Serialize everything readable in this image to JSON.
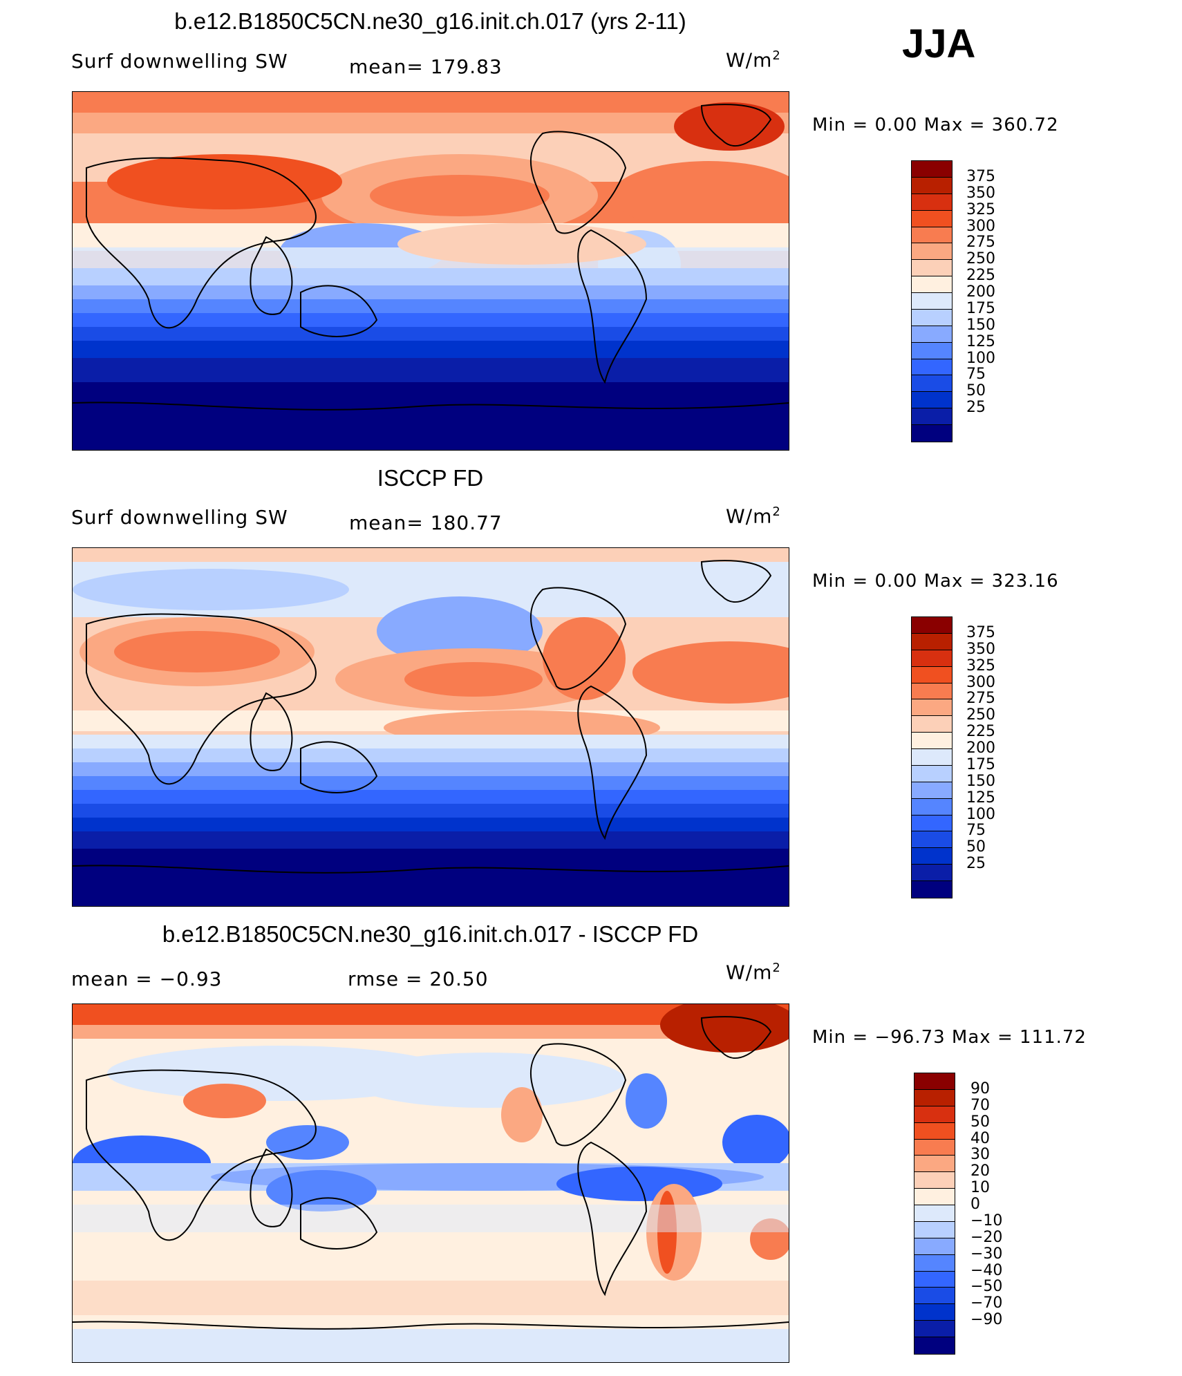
{
  "season": "JJA",
  "colors": {
    "abs": [
      "#00007f",
      "#0a1ea8",
      "#0033cc",
      "#1a4ce6",
      "#3366ff",
      "#5585ff",
      "#88aaff",
      "#b8d0ff",
      "#dde9fb",
      "#fff0e0",
      "#fcd0b8",
      "#fba882",
      "#f87c50",
      "#f05020",
      "#d83010",
      "#b82000",
      "#8a0000"
    ],
    "diff": [
      "#00007f",
      "#0a1ea8",
      "#0033cc",
      "#1a4ce6",
      "#3366ff",
      "#5585ff",
      "#88aaff",
      "#b8d0ff",
      "#dde9fb",
      "#fff0e0",
      "#fcd0b8",
      "#fba882",
      "#f87c50",
      "#f05020",
      "#d83010",
      "#b82000",
      "#8a0000"
    ]
  },
  "chart_data": [
    {
      "type": "contour-map",
      "title": "b.e12.B1850C5CN.ne30_g16.init.ch.017 (yrs 2-11)",
      "left_label": "Surf downwelling SW",
      "mean_label": "mean= 179.83",
      "units": "W/m",
      "units_sup": "2",
      "minmax": "Min =     0.00 Max  =  360.72",
      "min": 0.0,
      "max": 360.72,
      "levels": [
        "375",
        "350",
        "325",
        "300",
        "275",
        "250",
        "225",
        "200",
        "175",
        "150",
        "125",
        "100",
        "75",
        "50",
        "25"
      ]
    },
    {
      "type": "contour-map",
      "title": "ISCCP FD",
      "left_label": "Surf downwelling SW",
      "mean_label": "mean= 180.77",
      "units": "W/m",
      "units_sup": "2",
      "minmax": "Min =     0.00 Max  =  323.16",
      "min": 0.0,
      "max": 323.16,
      "levels": [
        "375",
        "350",
        "325",
        "300",
        "275",
        "250",
        "225",
        "200",
        "175",
        "150",
        "125",
        "100",
        "75",
        "50",
        "25"
      ]
    },
    {
      "type": "contour-map",
      "title": "b.e12.B1850C5CN.ne30_g16.init.ch.017 - ISCCP FD",
      "left_label": "mean =    −0.93",
      "mean_label": "rmse =    20.50",
      "units": "W/m",
      "units_sup": "2",
      "minmax": "Min  = −96.73 Max  =  111.72",
      "min": -96.73,
      "max": 111.72,
      "levels": [
        "90",
        "70",
        "50",
        "40",
        "30",
        "20",
        "10",
        "0",
        "−10",
        "−20",
        "−30",
        "−40",
        "−50",
        "−70",
        "−90"
      ]
    }
  ]
}
